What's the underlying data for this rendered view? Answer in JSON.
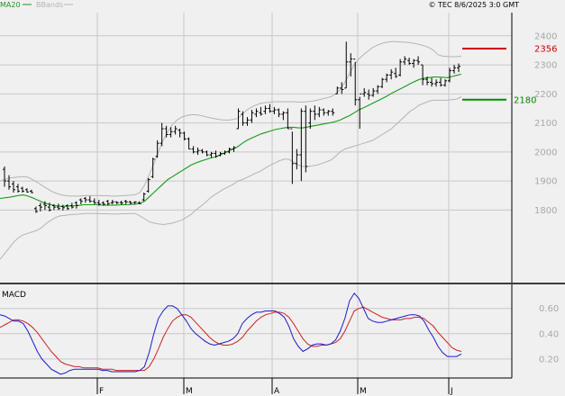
{
  "header": {
    "legend": [
      {
        "label": "MA20",
        "color": "#1a9a1a"
      },
      {
        "label": "BBands",
        "color": "#b4b4b4"
      }
    ],
    "timestamp": "© TEC 8/6/2025 3:0 GMT"
  },
  "colors": {
    "background": "#f0f0f0",
    "grid": "#c8c8c8",
    "price_bars": "#000000",
    "ma20": "#1a9a1a",
    "bbands": "#b4b4b4",
    "resistance": "#cc0000",
    "support": "#008800",
    "macd_line": "#1a1acc",
    "signal_line": "#cc2222"
  },
  "chart_data": [
    {
      "type": "line",
      "name": "price",
      "ylim": [
        1550,
        2480
      ],
      "y_ticks": [
        "2400",
        "2300",
        "2200",
        "2100",
        "2000",
        "1900",
        "1800"
      ],
      "x_ticks": [
        "F",
        "M",
        "A",
        "M",
        "J"
      ],
      "grid": true,
      "price_bars": [
        [
          1950,
          1880,
          1940,
          1900
        ],
        [
          1920,
          1870,
          1900,
          1880
        ],
        [
          1900,
          1860,
          1890,
          1870
        ],
        [
          1890,
          1860,
          1880,
          1865
        ],
        [
          1880,
          1860,
          1875,
          1865
        ],
        [
          1875,
          1860,
          1870,
          1862
        ],
        [
          1870,
          1858,
          1865,
          1860
        ],
        [
          1812,
          1790,
          1805,
          1795
        ],
        [
          1825,
          1795,
          1815,
          1810
        ],
        [
          1830,
          1800,
          1820,
          1815
        ],
        [
          1825,
          1795,
          1810,
          1800
        ],
        [
          1820,
          1800,
          1815,
          1810
        ],
        [
          1822,
          1800,
          1810,
          1805
        ],
        [
          1818,
          1798,
          1812,
          1808
        ],
        [
          1820,
          1800,
          1815,
          1805
        ],
        [
          1825,
          1805,
          1815,
          1810
        ],
        [
          1830,
          1805,
          1825,
          1815
        ],
        [
          1840,
          1820,
          1835,
          1830
        ],
        [
          1845,
          1825,
          1840,
          1835
        ],
        [
          1848,
          1825,
          1835,
          1830
        ],
        [
          1840,
          1820,
          1830,
          1825
        ],
        [
          1835,
          1815,
          1825,
          1820
        ],
        [
          1830,
          1815,
          1825,
          1820
        ],
        [
          1835,
          1815,
          1830,
          1822
        ],
        [
          1835,
          1820,
          1825,
          1828
        ],
        [
          1830,
          1820,
          1828,
          1825
        ],
        [
          1832,
          1818,
          1826,
          1824
        ],
        [
          1835,
          1820,
          1830,
          1828
        ],
        [
          1832,
          1820,
          1828,
          1824
        ],
        [
          1830,
          1820,
          1826,
          1828
        ],
        [
          1830,
          1820,
          1825,
          1822
        ],
        [
          1860,
          1830,
          1835,
          1855
        ],
        [
          1910,
          1860,
          1865,
          1905
        ],
        [
          1980,
          1910,
          1915,
          1975
        ],
        [
          2040,
          1980,
          1985,
          2030
        ],
        [
          2100,
          2020,
          2030,
          2080
        ],
        [
          2090,
          2050,
          2080,
          2060
        ],
        [
          2085,
          2050,
          2060,
          2070
        ],
        [
          2090,
          2060,
          2070,
          2080
        ],
        [
          2080,
          2050,
          2075,
          2065
        ],
        [
          2070,
          2040,
          2065,
          2045
        ],
        [
          2050,
          2010,
          2045,
          2010
        ],
        [
          2020,
          1995,
          2010,
          2000
        ],
        [
          2015,
          1990,
          2000,
          2005
        ],
        [
          2010,
          1995,
          2005,
          2000
        ],
        [
          2005,
          1985,
          2000,
          1990
        ],
        [
          2000,
          1980,
          1990,
          1995
        ],
        [
          2005,
          1980,
          1995,
          1985
        ],
        [
          2000,
          1985,
          1988,
          1995
        ],
        [
          2005,
          1990,
          1995,
          2000
        ],
        [
          2015,
          1995,
          2000,
          2010
        ],
        [
          2020,
          2000,
          2010,
          2015
        ],
        [
          2150,
          2080,
          2080,
          2140
        ],
        [
          2140,
          2090,
          2130,
          2100
        ],
        [
          2120,
          2090,
          2100,
          2110
        ],
        [
          2145,
          2100,
          2110,
          2135
        ],
        [
          2150,
          2120,
          2130,
          2140
        ],
        [
          2155,
          2125,
          2135,
          2130
        ],
        [
          2160,
          2130,
          2140,
          2150
        ],
        [
          2165,
          2135,
          2150,
          2140
        ],
        [
          2155,
          2130,
          2140,
          2145
        ],
        [
          2150,
          2120,
          2145,
          2130
        ],
        [
          2140,
          2110,
          2130,
          2135
        ],
        [
          2150,
          2080,
          2135,
          2080
        ],
        [
          2070,
          1890,
          2080,
          1960
        ],
        [
          2010,
          1940,
          1960,
          1990
        ],
        [
          2150,
          1900,
          1990,
          2140
        ],
        [
          2160,
          1930,
          2140,
          1950
        ],
        [
          2150,
          2080,
          2100,
          2140
        ],
        [
          2160,
          2110,
          2140,
          2130
        ],
        [
          2155,
          2120,
          2130,
          2145
        ],
        [
          2150,
          2125,
          2145,
          2135
        ],
        [
          2145,
          2125,
          2135,
          2140
        ],
        [
          2150,
          2125,
          2140,
          2135
        ],
        [
          2225,
          2200,
          2200,
          2220
        ],
        [
          2240,
          2200,
          2220,
          2215
        ],
        [
          2380,
          2220,
          2220,
          2310
        ],
        [
          2340,
          2260,
          2310,
          2320
        ],
        [
          2310,
          2160,
          2320,
          2180
        ],
        [
          2190,
          2080,
          2180,
          2200
        ],
        [
          2220,
          2190,
          2200,
          2205
        ],
        [
          2215,
          2180,
          2200,
          2195
        ],
        [
          2220,
          2190,
          2195,
          2210
        ],
        [
          2230,
          2200,
          2210,
          2225
        ],
        [
          2255,
          2220,
          2225,
          2250
        ],
        [
          2270,
          2240,
          2250,
          2265
        ],
        [
          2285,
          2250,
          2265,
          2275
        ],
        [
          2290,
          2255,
          2270,
          2260
        ],
        [
          2320,
          2260,
          2265,
          2310
        ],
        [
          2330,
          2300,
          2310,
          2320
        ],
        [
          2325,
          2300,
          2315,
          2305
        ],
        [
          2320,
          2290,
          2305,
          2315
        ],
        [
          2330,
          2300,
          2315,
          2310
        ],
        [
          2300,
          2230,
          2300,
          2250
        ],
        [
          2260,
          2230,
          2250,
          2240
        ],
        [
          2255,
          2225,
          2240,
          2235
        ],
        [
          2250,
          2225,
          2235,
          2240
        ],
        [
          2255,
          2225,
          2240,
          2230
        ],
        [
          2250,
          2225,
          2230,
          2245
        ],
        [
          2290,
          2240,
          2245,
          2280
        ],
        [
          2300,
          2270,
          2280,
          2290
        ],
        [
          2305,
          2275,
          2290,
          2295
        ]
      ],
      "ma20": [
        1840,
        1842,
        1844,
        1847,
        1850,
        1852,
        1848,
        1842,
        1835,
        1828,
        1822,
        1818,
        1815,
        1813,
        1813,
        1814,
        1815,
        1816,
        1818,
        1818,
        1818,
        1818,
        1817,
        1817,
        1817,
        1817,
        1818,
        1818,
        1819,
        1820,
        1823,
        1830,
        1845,
        1860,
        1875,
        1890,
        1905,
        1915,
        1925,
        1935,
        1945,
        1955,
        1962,
        1968,
        1973,
        1978,
        1982,
        1988,
        1995,
        2003,
        2010,
        2018,
        2030,
        2040,
        2048,
        2055,
        2062,
        2067,
        2072,
        2077,
        2080,
        2083,
        2085,
        2085,
        2083,
        2083,
        2086,
        2089,
        2092,
        2095,
        2098,
        2101,
        2105,
        2110,
        2118,
        2125,
        2135,
        2145,
        2152,
        2160,
        2168,
        2176,
        2184,
        2192,
        2202,
        2210,
        2218,
        2226,
        2235,
        2243,
        2250,
        2254,
        2256,
        2258,
        2258,
        2257,
        2256,
        2260,
        2264,
        2268
      ],
      "bb_upper": [
        1900,
        1905,
        1910,
        1912,
        1914,
        1915,
        1913,
        1905,
        1895,
        1885,
        1875,
        1865,
        1858,
        1853,
        1850,
        1848,
        1848,
        1848,
        1849,
        1850,
        1850,
        1850,
        1849,
        1849,
        1848,
        1848,
        1849,
        1850,
        1851,
        1853,
        1860,
        1885,
        1920,
        1960,
        2000,
        2040,
        2070,
        2095,
        2110,
        2120,
        2125,
        2128,
        2128,
        2126,
        2122,
        2118,
        2115,
        2112,
        2110,
        2110,
        2112,
        2115,
        2130,
        2145,
        2155,
        2162,
        2168,
        2170,
        2172,
        2173,
        2173,
        2173,
        2173,
        2173,
        2172,
        2172,
        2173,
        2175,
        2178,
        2182,
        2186,
        2190,
        2200,
        2215,
        2240,
        2270,
        2300,
        2320,
        2335,
        2348,
        2360,
        2368,
        2374,
        2378,
        2380,
        2380,
        2379,
        2378,
        2376,
        2374,
        2370,
        2366,
        2360,
        2350,
        2335,
        2330,
        2329,
        2328,
        2328,
        2330
      ],
      "bb_lower": [
        1630,
        1650,
        1670,
        1690,
        1705,
        1715,
        1720,
        1725,
        1730,
        1740,
        1755,
        1765,
        1775,
        1780,
        1782,
        1784,
        1785,
        1786,
        1788,
        1788,
        1788,
        1788,
        1787,
        1787,
        1786,
        1786,
        1787,
        1787,
        1788,
        1788,
        1780,
        1770,
        1760,
        1755,
        1752,
        1750,
        1752,
        1755,
        1760,
        1765,
        1775,
        1785,
        1800,
        1812,
        1825,
        1840,
        1852,
        1862,
        1872,
        1880,
        1888,
        1900,
        1905,
        1912,
        1920,
        1928,
        1935,
        1945,
        1955,
        1962,
        1970,
        1975,
        1975,
        1965,
        1955,
        1950,
        1950,
        1952,
        1955,
        1960,
        1966,
        1972,
        1985,
        2000,
        2010,
        2015,
        2020,
        2025,
        2030,
        2035,
        2040,
        2050,
        2060,
        2070,
        2080,
        2095,
        2110,
        2125,
        2140,
        2150,
        2162,
        2168,
        2175,
        2178,
        2178,
        2178,
        2178,
        2180,
        2182,
        2190
      ]
    },
    {
      "type": "line",
      "name": "MACD",
      "ylim": [
        0.05,
        0.79
      ],
      "y_ticks": [
        "0.60",
        "0.40",
        "0.20"
      ],
      "grid": true,
      "macd": [
        0.55,
        0.54,
        0.52,
        0.5,
        0.5,
        0.48,
        0.42,
        0.34,
        0.26,
        0.2,
        0.16,
        0.12,
        0.1,
        0.08,
        0.09,
        0.11,
        0.12,
        0.12,
        0.12,
        0.12,
        0.12,
        0.12,
        0.11,
        0.11,
        0.1,
        0.1,
        0.1,
        0.1,
        0.1,
        0.1,
        0.11,
        0.14,
        0.25,
        0.4,
        0.52,
        0.58,
        0.62,
        0.62,
        0.6,
        0.55,
        0.5,
        0.44,
        0.4,
        0.37,
        0.34,
        0.32,
        0.31,
        0.32,
        0.33,
        0.34,
        0.36,
        0.4,
        0.48,
        0.52,
        0.55,
        0.57,
        0.57,
        0.58,
        0.58,
        0.58,
        0.56,
        0.53,
        0.46,
        0.36,
        0.3,
        0.26,
        0.28,
        0.31,
        0.32,
        0.32,
        0.31,
        0.32,
        0.35,
        0.42,
        0.52,
        0.66,
        0.72,
        0.68,
        0.6,
        0.52,
        0.5,
        0.49,
        0.49,
        0.5,
        0.51,
        0.52,
        0.53,
        0.54,
        0.55,
        0.55,
        0.54,
        0.5,
        0.43,
        0.37,
        0.3,
        0.25,
        0.22,
        0.22,
        0.22,
        0.24
      ],
      "signal": [
        0.45,
        0.47,
        0.49,
        0.51,
        0.51,
        0.5,
        0.48,
        0.45,
        0.41,
        0.36,
        0.31,
        0.26,
        0.22,
        0.18,
        0.16,
        0.15,
        0.14,
        0.14,
        0.13,
        0.13,
        0.13,
        0.13,
        0.12,
        0.12,
        0.12,
        0.11,
        0.11,
        0.11,
        0.11,
        0.11,
        0.11,
        0.11,
        0.14,
        0.2,
        0.28,
        0.37,
        0.44,
        0.5,
        0.53,
        0.55,
        0.55,
        0.53,
        0.49,
        0.45,
        0.41,
        0.37,
        0.34,
        0.32,
        0.31,
        0.31,
        0.32,
        0.34,
        0.37,
        0.42,
        0.46,
        0.5,
        0.53,
        0.55,
        0.56,
        0.57,
        0.57,
        0.56,
        0.53,
        0.48,
        0.42,
        0.36,
        0.32,
        0.3,
        0.3,
        0.31,
        0.31,
        0.32,
        0.33,
        0.36,
        0.42,
        0.5,
        0.58,
        0.6,
        0.61,
        0.59,
        0.57,
        0.55,
        0.53,
        0.52,
        0.51,
        0.51,
        0.51,
        0.52,
        0.52,
        0.53,
        0.53,
        0.52,
        0.49,
        0.46,
        0.41,
        0.37,
        0.33,
        0.29,
        0.27,
        0.26
      ]
    }
  ],
  "levels": [
    {
      "label": "2356",
      "value": 2356,
      "color": "#cc0000"
    },
    {
      "label": "2180",
      "value": 2180,
      "color": "#008800"
    }
  ],
  "macd_panel_title": "MACD"
}
